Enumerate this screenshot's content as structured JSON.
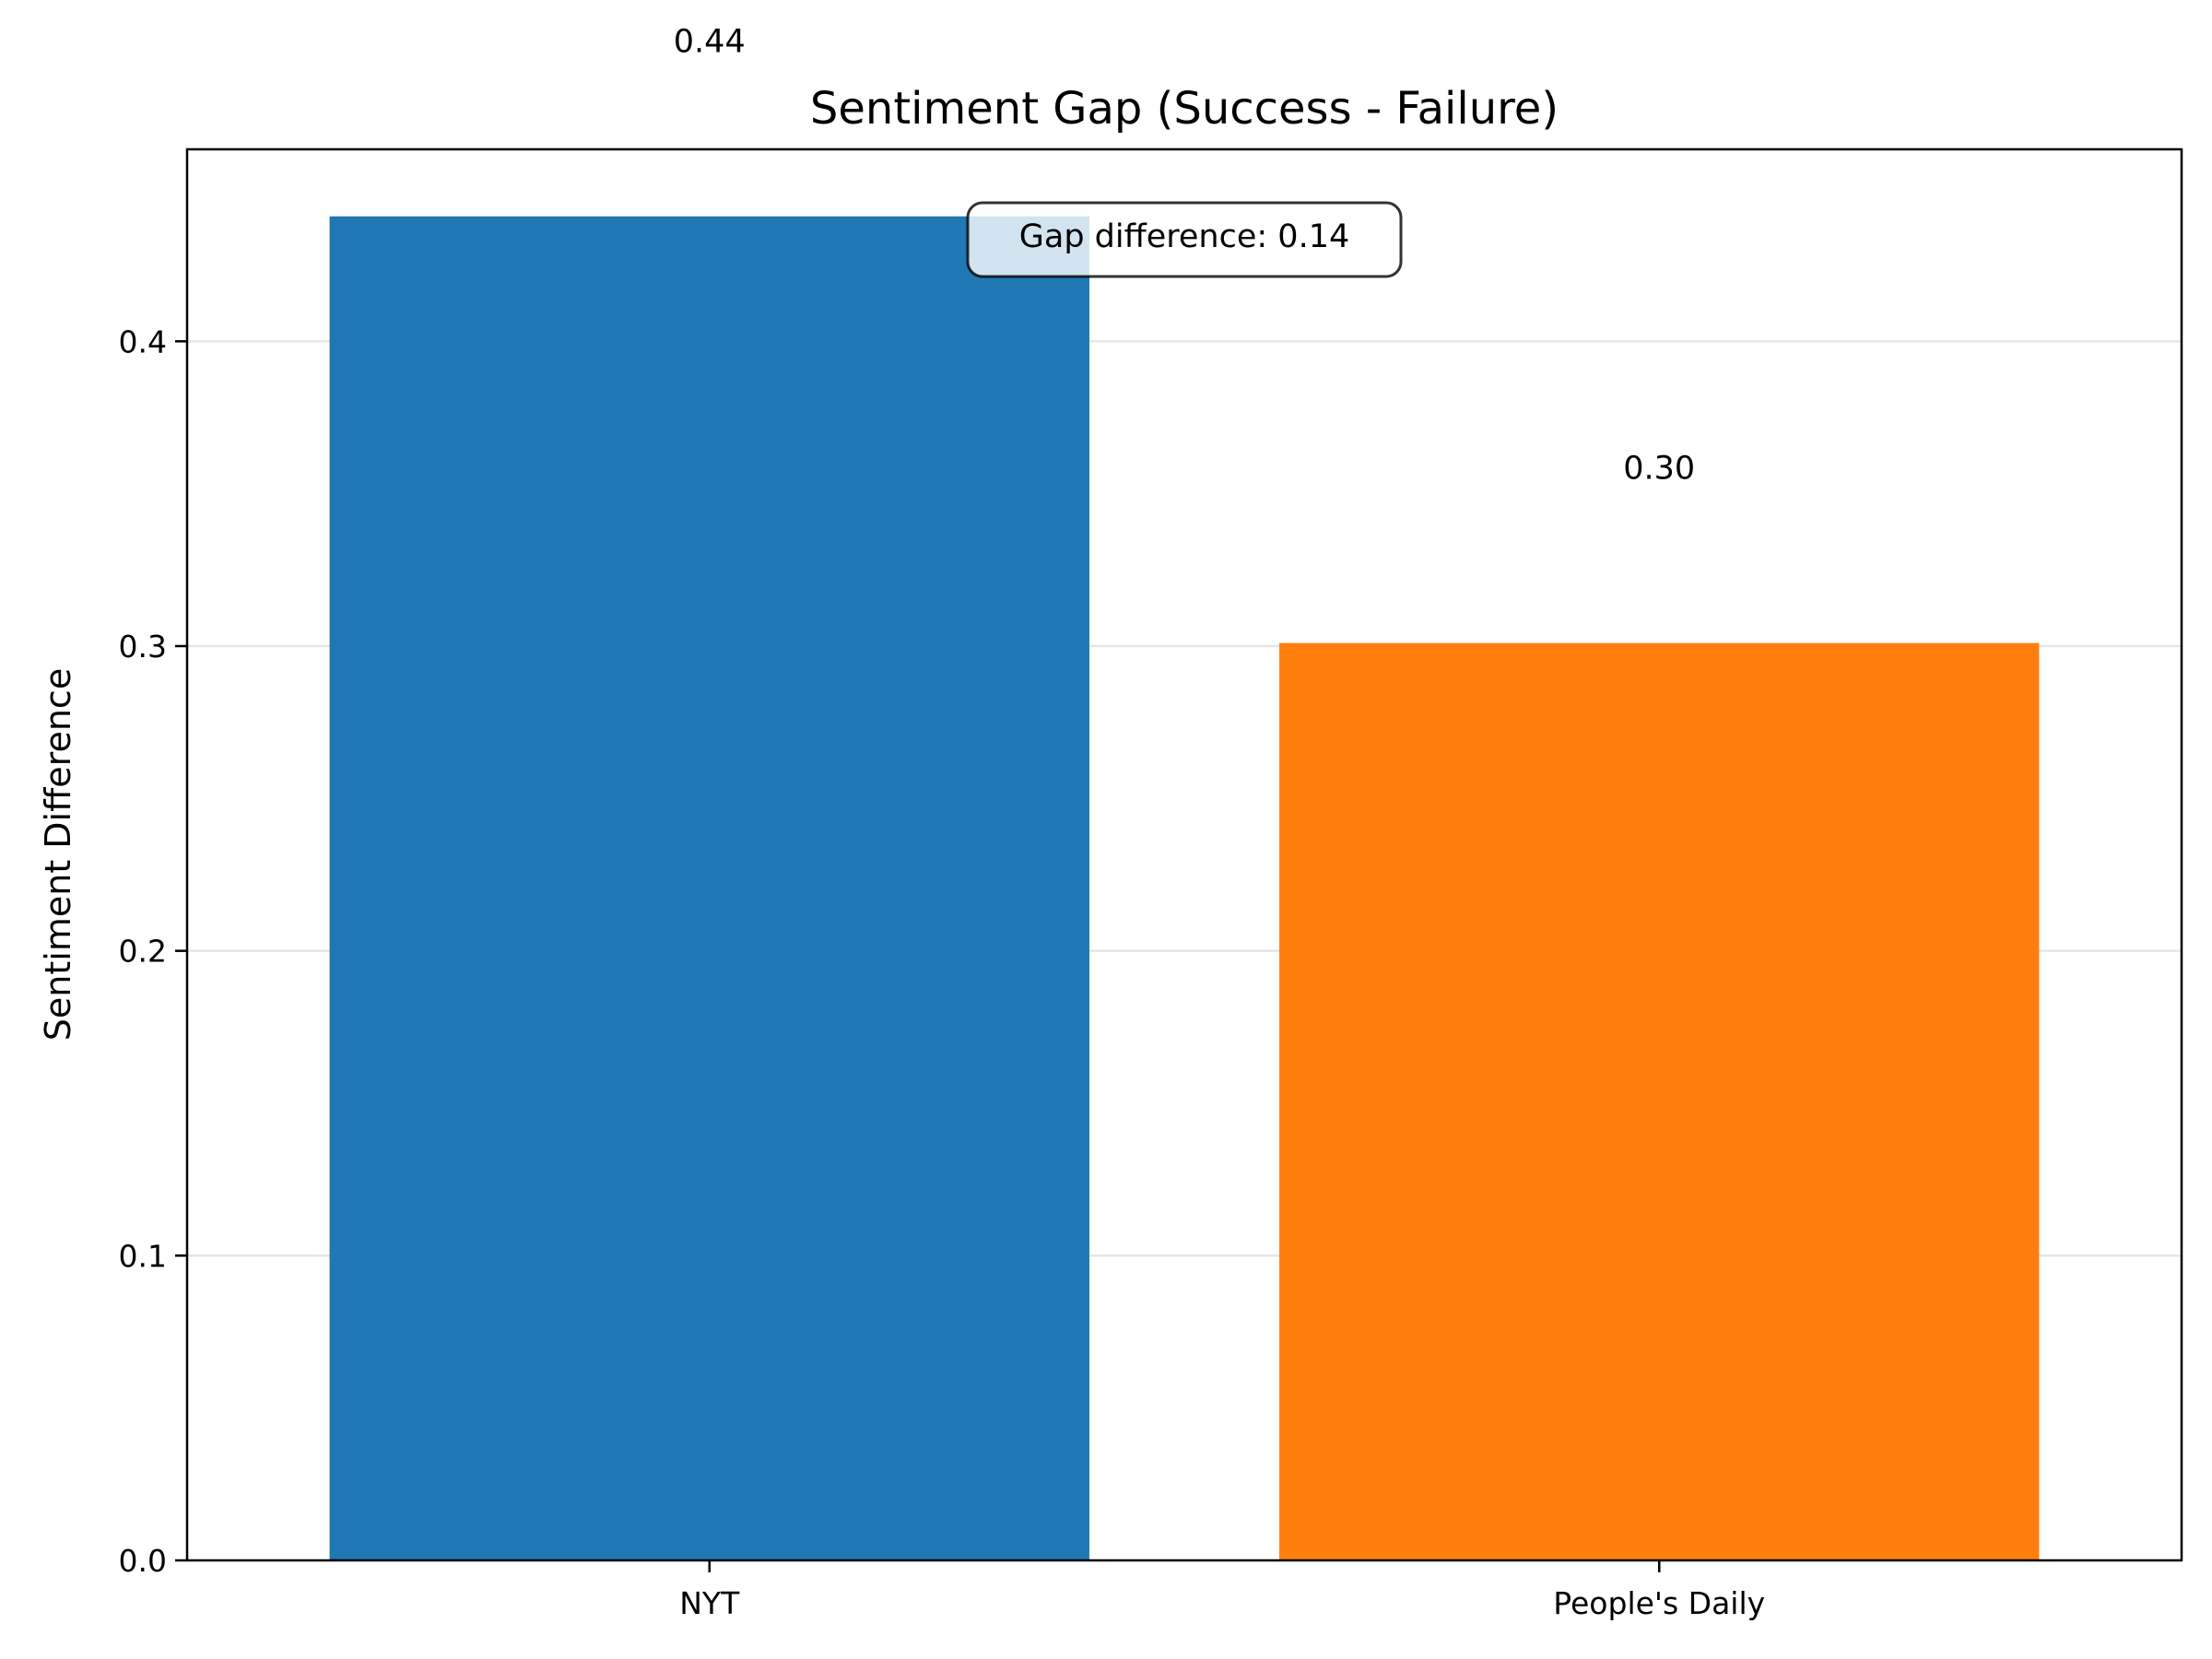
{
  "chart_data": {
    "type": "bar",
    "title": "Sentiment Gap (Success - Failure)",
    "xlabel": "",
    "ylabel": "Sentiment Difference",
    "categories": [
      "NYT",
      "People's Daily"
    ],
    "values": [
      0.441,
      0.301
    ],
    "value_labels": [
      "0.44",
      "0.30"
    ],
    "colors": [
      "#1f77b4",
      "#ff7f0e"
    ],
    "ylim": [
      0,
      0.463
    ],
    "yticks": [
      0.0,
      0.1,
      0.2,
      0.3,
      0.4
    ],
    "ytick_labels": [
      "0.0",
      "0.1",
      "0.2",
      "0.3",
      "0.4"
    ],
    "grid": "y",
    "annotation": "Gap difference: 0.14"
  }
}
